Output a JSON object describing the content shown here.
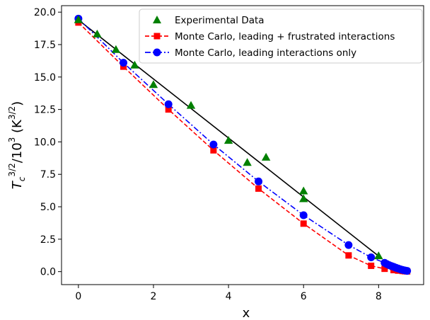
{
  "chart_data": {
    "type": "scatter",
    "xlabel": "x",
    "ylabel_main": "T",
    "ylabel_sub": "c",
    "ylabel_sup": "3/2",
    "ylabel_rest": "/10",
    "ylabel_sup2": "3",
    "ylabel_unit": " (K",
    "ylabel_unit_sup": "3/2",
    "ylabel_close": ")",
    "xlim": [
      -0.45,
      9.2
    ],
    "ylim": [
      -1.0,
      20.5
    ],
    "x_ticks": [
      0,
      2,
      4,
      6,
      8
    ],
    "x_tick_labels": [
      "0",
      "2",
      "4",
      "6",
      "8"
    ],
    "y_ticks": [
      0.0,
      2.5,
      5.0,
      7.5,
      10.0,
      12.5,
      15.0,
      17.5,
      20.0
    ],
    "y_tick_labels": [
      "0.0",
      "2.5",
      "5.0",
      "7.5",
      "10.0",
      "12.5",
      "15.0",
      "17.5",
      "20.0"
    ],
    "grid": false,
    "legend_position": "top-right",
    "series": [
      {
        "name": "Experimental Data",
        "style": "triangle",
        "color": "#008000",
        "x": [
          0.0,
          0.5,
          1.0,
          1.5,
          2.0,
          3.0,
          4.0,
          4.5,
          5.0,
          6.0,
          6.0,
          8.0
        ],
        "y": [
          19.4,
          18.3,
          17.1,
          15.9,
          14.4,
          12.8,
          10.1,
          8.4,
          8.8,
          5.6,
          6.2,
          1.2
        ]
      },
      {
        "name": "Monte Carlo, leading + frustrated interactions",
        "style": "square-dashed",
        "color": "#ff0000",
        "x": [
          0.0,
          1.2,
          2.4,
          3.6,
          4.8,
          6.0,
          7.2,
          7.8,
          8.16,
          8.4,
          8.52,
          8.64,
          8.7,
          8.76
        ],
        "y": [
          19.2,
          15.8,
          12.5,
          9.35,
          6.4,
          3.7,
          1.25,
          0.45,
          0.22,
          0.12,
          0.08,
          0.05,
          0.03,
          0.02
        ]
      },
      {
        "name": "Monte Carlo, leading interactions only",
        "style": "circle-dashdot",
        "color": "#0000ff",
        "x": [
          0.0,
          1.2,
          2.4,
          3.6,
          4.8,
          6.0,
          7.2,
          7.8,
          8.16,
          8.22,
          8.28,
          8.34,
          8.4,
          8.46,
          8.52,
          8.58,
          8.64,
          8.7,
          8.76
        ],
        "y": [
          19.5,
          16.1,
          12.9,
          9.8,
          6.95,
          4.35,
          2.05,
          1.1,
          0.68,
          0.58,
          0.5,
          0.43,
          0.37,
          0.3,
          0.24,
          0.18,
          0.13,
          0.09,
          0.06
        ]
      }
    ],
    "reference_line": {
      "color": "#000000",
      "x": [
        0.0,
        8.0
      ],
      "y": [
        19.4,
        1.2
      ]
    }
  }
}
